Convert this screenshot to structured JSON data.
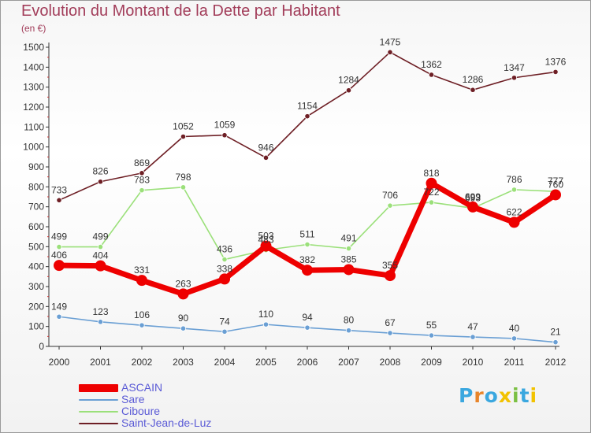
{
  "header": {
    "title": "Evolution du Montant de la Dette par Habitant",
    "subtitle": "(en €)"
  },
  "chart_data": {
    "type": "line",
    "title": "Evolution du Montant de la Dette par Habitant",
    "ylabel": "(en €)",
    "xlabel": "",
    "x": [
      "2000",
      "2001",
      "2002",
      "2003",
      "2004",
      "2005",
      "2006",
      "2007",
      "2008",
      "2009",
      "2010",
      "2011",
      "2012"
    ],
    "ylim": [
      0,
      1500
    ],
    "yticks": [
      0,
      100,
      200,
      300,
      400,
      500,
      600,
      700,
      800,
      900,
      1000,
      1100,
      1200,
      1300,
      1400,
      1500
    ],
    "grid": false,
    "legend_position": "bottom-left",
    "series": [
      {
        "name": "Saint-Jean-de-Luz",
        "color": "#6e1f25",
        "values": [
          733,
          826,
          869,
          1052,
          1059,
          946,
          1154,
          1284,
          1475,
          1362,
          1286,
          1347,
          1376
        ]
      },
      {
        "name": "Ciboure",
        "color": "#9be07a",
        "values": [
          499,
          499,
          783,
          798,
          436,
          483,
          511,
          491,
          706,
          722,
          693,
          786,
          777
        ]
      },
      {
        "name": "Sare",
        "color": "#6a9fd4",
        "values": [
          149,
          123,
          106,
          90,
          74,
          110,
          94,
          80,
          67,
          55,
          47,
          40,
          21
        ]
      },
      {
        "name": "ASCAIN",
        "color": "#ee0000",
        "values": [
          406,
          404,
          331,
          263,
          338,
          503,
          382,
          385,
          355,
          818,
          699,
          622,
          760
        ]
      }
    ]
  },
  "legend": [
    {
      "label": "ASCAIN",
      "color": "#ee0000"
    },
    {
      "label": "Sare",
      "color": "#6a9fd4"
    },
    {
      "label": "Ciboure",
      "color": "#9be07a"
    },
    {
      "label": "Saint-Jean-de-Luz",
      "color": "#6e1f25"
    }
  ],
  "logo": {
    "letters": [
      "P",
      "r",
      "o",
      "x",
      "i",
      "t",
      "i"
    ],
    "colors": [
      "#3aa7df",
      "#e8852a",
      "#3aa7df",
      "#f2c200",
      "#7bc043",
      "#3aa7df",
      "#f2c200"
    ]
  }
}
